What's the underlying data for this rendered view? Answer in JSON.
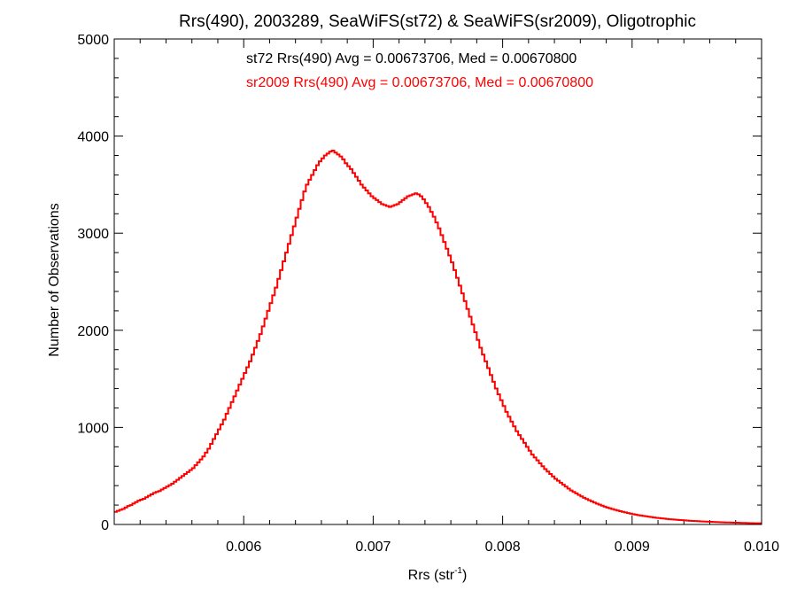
{
  "chart_data": {
    "type": "histogram",
    "title": "Rrs(490), 2003289, SeaWiFS(st72) & SeaWiFS(sr2009), Oligotrophic",
    "xlabel_base": "Rrs (str",
    "xlabel_sup": "-1",
    "xlabel_close": ")",
    "ylabel": "Number of Observations",
    "xlim": [
      0.005,
      0.01
    ],
    "ylim": [
      0,
      5000
    ],
    "x_ticks": [
      {
        "value": 0.006,
        "label": "0.006"
      },
      {
        "value": 0.007,
        "label": "0.007"
      },
      {
        "value": 0.008,
        "label": "0.008"
      },
      {
        "value": 0.009,
        "label": "0.009"
      },
      {
        "value": 0.01,
        "label": "0.010"
      }
    ],
    "y_ticks": [
      {
        "value": 0,
        "label": "0"
      },
      {
        "value": 1000,
        "label": "1000"
      },
      {
        "value": 2000,
        "label": "2000"
      },
      {
        "value": 3000,
        "label": "3000"
      },
      {
        "value": 4000,
        "label": "4000"
      },
      {
        "value": 5000,
        "label": "5000"
      }
    ],
    "annotations": [
      {
        "text": "st72 Rrs(490) Avg = 0.00673706, Med = 0.00670800",
        "color": "#000000"
      },
      {
        "text": "sr2009 Rrs(490) Avg = 0.00673706, Med = 0.00670800",
        "color": "#ff0000"
      }
    ],
    "series": [
      {
        "color": "#ff0000",
        "bin_width": 2e-05,
        "x_start": 0.005,
        "counts": [
          130,
          140,
          150,
          160,
          175,
          190,
          200,
          215,
          230,
          245,
          255,
          265,
          280,
          295,
          310,
          325,
          335,
          345,
          360,
          375,
          390,
          405,
          420,
          440,
          460,
          480,
          500,
          520,
          540,
          560,
          580,
          610,
          640,
          670,
          700,
          740,
          780,
          830,
          880,
          930,
          980,
          1030,
          1080,
          1140,
          1200,
          1260,
          1320,
          1380,
          1440,
          1500,
          1560,
          1620,
          1680,
          1750,
          1820,
          1890,
          1960,
          2040,
          2120,
          2200,
          2280,
          2360,
          2440,
          2530,
          2620,
          2710,
          2800,
          2890,
          2980,
          3070,
          3160,
          3250,
          3340,
          3430,
          3500,
          3550,
          3600,
          3650,
          3700,
          3740,
          3770,
          3800,
          3820,
          3840,
          3850,
          3830,
          3810,
          3790,
          3760,
          3720,
          3690,
          3660,
          3620,
          3580,
          3540,
          3500,
          3470,
          3440,
          3410,
          3380,
          3360,
          3340,
          3320,
          3300,
          3290,
          3280,
          3270,
          3280,
          3290,
          3300,
          3320,
          3340,
          3360,
          3380,
          3390,
          3400,
          3410,
          3400,
          3380,
          3350,
          3310,
          3270,
          3220,
          3170,
          3110,
          3050,
          2980,
          2910,
          2840,
          2770,
          2700,
          2620,
          2540,
          2460,
          2380,
          2300,
          2220,
          2140,
          2060,
          1980,
          1900,
          1820,
          1750,
          1680,
          1610,
          1540,
          1470,
          1400,
          1340,
          1280,
          1220,
          1160,
          1110,
          1060,
          1010,
          960,
          920,
          880,
          840,
          800,
          760,
          720,
          690,
          660,
          630,
          600,
          570,
          545,
          520,
          495,
          470,
          450,
          430,
          410,
          390,
          370,
          350,
          335,
          320,
          305,
          290,
          275,
          262,
          250,
          238,
          226,
          214,
          204,
          194,
          184,
          175,
          167,
          159,
          151,
          144,
          137,
          130,
          124,
          118,
          112,
          106,
          101,
          96,
          92,
          88,
          84,
          80,
          76,
          72,
          69,
          66,
          63,
          60,
          57,
          54,
          52,
          50,
          48,
          46,
          44,
          42,
          40,
          38,
          36,
          35,
          34,
          32,
          31,
          30,
          28,
          27,
          26,
          25,
          24,
          23,
          22,
          21,
          20,
          19,
          18,
          18,
          17,
          16,
          16,
          15,
          14,
          14,
          13,
          12,
          12
        ]
      }
    ]
  }
}
